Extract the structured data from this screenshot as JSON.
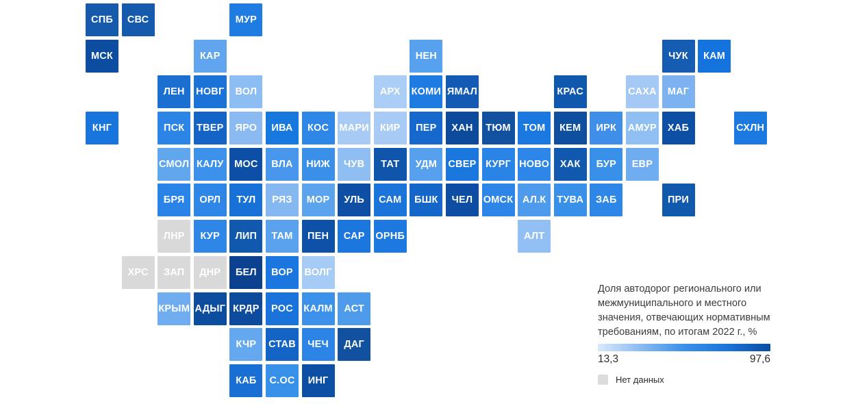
{
  "chart_data": {
    "type": "heatmap",
    "subtype": "tile-grid-cartogram",
    "title": "Доля автодорог регионального или\nмежмуниципального и местного\nзначения, отвечающих нормативным\nтребованиям, по итогам 2022 г., %",
    "no_data_label": "Нет данных",
    "colorbar": {
      "min": 13.3,
      "max": 97.6,
      "min_label": "13,3",
      "max_label": "97,6",
      "gradient": [
        "#d9e9fc",
        "#8abaf1",
        "#3a90e9",
        "#1b74da",
        "#0b4da1"
      ]
    },
    "no_data_color": "#d9d9d9",
    "no_data_swatch_color": "#dcdcdc",
    "tile_label_color": "#ffffff",
    "cells": [
      {
        "label": "СПБ",
        "col": 1,
        "row": 1,
        "color": "#165aae"
      },
      {
        "label": "СВС",
        "col": 2,
        "row": 1,
        "color": "#165aae"
      },
      {
        "label": "МУР",
        "col": 5,
        "row": 1,
        "color": "#1e7ce2"
      },
      {
        "label": "МСК",
        "col": 1,
        "row": 2,
        "color": "#0c4da2"
      },
      {
        "label": "КАР",
        "col": 4,
        "row": 2,
        "color": "#60a5ee"
      },
      {
        "label": "НЕН",
        "col": 10,
        "row": 2,
        "color": "#58a1ef"
      },
      {
        "label": "ЧУК",
        "col": 17,
        "row": 2,
        "color": "#155cb2"
      },
      {
        "label": "КАМ",
        "col": 18,
        "row": 2,
        "color": "#1473dc"
      },
      {
        "label": "ЛЕН",
        "col": 3,
        "row": 3,
        "color": "#1b6fd1"
      },
      {
        "label": "НОВГ",
        "col": 4,
        "row": 3,
        "color": "#1b73d8"
      },
      {
        "label": "ВОЛ",
        "col": 5,
        "row": 3,
        "color": "#8cbdf3"
      },
      {
        "label": "АРХ",
        "col": 9,
        "row": 3,
        "color": "#abcef6"
      },
      {
        "label": "КОМИ",
        "col": 10,
        "row": 3,
        "color": "#1e7be2"
      },
      {
        "label": "ЯМАЛ",
        "col": 11,
        "row": 3,
        "color": "#125ab4"
      },
      {
        "label": "КРАС",
        "col": 14,
        "row": 3,
        "color": "#1058ae"
      },
      {
        "label": "САХА",
        "col": 16,
        "row": 3,
        "color": "#a4c9f4"
      },
      {
        "label": "МАГ",
        "col": 17,
        "row": 3,
        "color": "#7db2f1"
      },
      {
        "label": "КНГ",
        "col": 1,
        "row": 4,
        "color": "#1775dd"
      },
      {
        "label": "ПСК",
        "col": 3,
        "row": 4,
        "color": "#2b84e6"
      },
      {
        "label": "ТВЕР",
        "col": 4,
        "row": 4,
        "color": "#1463c6"
      },
      {
        "label": "ЯРО",
        "col": 5,
        "row": 4,
        "color": "#8abaf1"
      },
      {
        "label": "ИВА",
        "col": 6,
        "row": 4,
        "color": "#1778de"
      },
      {
        "label": "КОС",
        "col": 7,
        "row": 4,
        "color": "#2e86e7"
      },
      {
        "label": "МАРИ",
        "col": 8,
        "row": 4,
        "color": "#a8cbf5"
      },
      {
        "label": "КИР",
        "col": 9,
        "row": 4,
        "color": "#a8cbf5"
      },
      {
        "label": "ПЕР",
        "col": 10,
        "row": 4,
        "color": "#1668cd"
      },
      {
        "label": "ХАН",
        "col": 11,
        "row": 4,
        "color": "#0c4a9b"
      },
      {
        "label": "ТЮМ",
        "col": 12,
        "row": 4,
        "color": "#11519f"
      },
      {
        "label": "ТОМ",
        "col": 13,
        "row": 4,
        "color": "#1a78e0"
      },
      {
        "label": "КЕМ",
        "col": 14,
        "row": 4,
        "color": "#0e4f9f"
      },
      {
        "label": "ИРК",
        "col": 15,
        "row": 4,
        "color": "#3f8fe9"
      },
      {
        "label": "АМУР",
        "col": 16,
        "row": 4,
        "color": "#90c0f3"
      },
      {
        "label": "ХАБ",
        "col": 17,
        "row": 4,
        "color": "#0d4fa4"
      },
      {
        "label": "СХЛН",
        "col": 19,
        "row": 4,
        "color": "#1b79e0"
      },
      {
        "label": "СМОЛ",
        "col": 3,
        "row": 5,
        "color": "#60a7ee"
      },
      {
        "label": "КАЛУ",
        "col": 4,
        "row": 5,
        "color": "#3c92ea"
      },
      {
        "label": "МОС",
        "col": 5,
        "row": 5,
        "color": "#0d4fa6"
      },
      {
        "label": "ВЛА",
        "col": 6,
        "row": 5,
        "color": "#4897ec"
      },
      {
        "label": "НИЖ",
        "col": 7,
        "row": 5,
        "color": "#3a90e9"
      },
      {
        "label": "ЧУВ",
        "col": 8,
        "row": 5,
        "color": "#8fbef3"
      },
      {
        "label": "ТАТ",
        "col": 9,
        "row": 5,
        "color": "#0f55ab"
      },
      {
        "label": "УДМ",
        "col": 10,
        "row": 5,
        "color": "#57a0ed"
      },
      {
        "label": "СВЕР",
        "col": 11,
        "row": 5,
        "color": "#1a77de"
      },
      {
        "label": "КУРГ",
        "col": 12,
        "row": 5,
        "color": "#2a84e6"
      },
      {
        "label": "НОВО",
        "col": 13,
        "row": 5,
        "color": "#2e87e8"
      },
      {
        "label": "ХАК",
        "col": 14,
        "row": 5,
        "color": "#1059ae"
      },
      {
        "label": "БУР",
        "col": 15,
        "row": 5,
        "color": "#3990e9"
      },
      {
        "label": "ЕВР",
        "col": 16,
        "row": 5,
        "color": "#70adf0"
      },
      {
        "label": "БРЯ",
        "col": 3,
        "row": 6,
        "color": "#2a83e6"
      },
      {
        "label": "ОРЛ",
        "col": 4,
        "row": 6,
        "color": "#2e86e7"
      },
      {
        "label": "ТУЛ",
        "col": 5,
        "row": 6,
        "color": "#1871d6"
      },
      {
        "label": "РЯЗ",
        "col": 6,
        "row": 6,
        "color": "#85b8f1"
      },
      {
        "label": "МОР",
        "col": 7,
        "row": 6,
        "color": "#5ba3ed"
      },
      {
        "label": "УЛЬ",
        "col": 8,
        "row": 6,
        "color": "#0e4fa5"
      },
      {
        "label": "САМ",
        "col": 9,
        "row": 6,
        "color": "#1a74da"
      },
      {
        "label": "БШК",
        "col": 10,
        "row": 6,
        "color": "#1466c8"
      },
      {
        "label": "ЧЕЛ",
        "col": 11,
        "row": 6,
        "color": "#0d4da3"
      },
      {
        "label": "ОМСК",
        "col": 12,
        "row": 6,
        "color": "#2d86e7"
      },
      {
        "label": "АЛ.К",
        "col": 13,
        "row": 6,
        "color": "#4e9aec"
      },
      {
        "label": "ТУВА",
        "col": 14,
        "row": 6,
        "color": "#3990e9"
      },
      {
        "label": "ЗАБ",
        "col": 15,
        "row": 6,
        "color": "#2e87e7"
      },
      {
        "label": "ПРИ",
        "col": 17,
        "row": 6,
        "color": "#1159ad"
      },
      {
        "label": "ЛНР",
        "col": 3,
        "row": 7,
        "color": "#d9d9d9"
      },
      {
        "label": "КУР",
        "col": 4,
        "row": 7,
        "color": "#2e86e7"
      },
      {
        "label": "ЛИП",
        "col": 5,
        "row": 7,
        "color": "#1059ae"
      },
      {
        "label": "ТАМ",
        "col": 6,
        "row": 7,
        "color": "#5aa2ed"
      },
      {
        "label": "ПЕН",
        "col": 7,
        "row": 7,
        "color": "#0e51a8"
      },
      {
        "label": "САР",
        "col": 8,
        "row": 7,
        "color": "#1b77de"
      },
      {
        "label": "ОРНБ",
        "col": 9,
        "row": 7,
        "color": "#1d79e0"
      },
      {
        "label": "АЛТ",
        "col": 13,
        "row": 7,
        "color": "#93c0f4"
      },
      {
        "label": "ХРС",
        "col": 2,
        "row": 8,
        "color": "#d9d9d9"
      },
      {
        "label": "ЗАП",
        "col": 3,
        "row": 8,
        "color": "#d9d9d9"
      },
      {
        "label": "ДНР",
        "col": 4,
        "row": 8,
        "color": "#d9d9d9"
      },
      {
        "label": "БЕЛ",
        "col": 5,
        "row": 8,
        "color": "#0c418f"
      },
      {
        "label": "ВОР",
        "col": 6,
        "row": 8,
        "color": "#1b76e0"
      },
      {
        "label": "ВОЛГ",
        "col": 7,
        "row": 8,
        "color": "#a6cbf5"
      },
      {
        "label": "КРЫМ",
        "col": 3,
        "row": 9,
        "color": "#6fadf0"
      },
      {
        "label": "АДЫГ",
        "col": 4,
        "row": 9,
        "color": "#0d4da0"
      },
      {
        "label": "КРДР",
        "col": 5,
        "row": 9,
        "color": "#0d4c9d"
      },
      {
        "label": "РОС",
        "col": 6,
        "row": 9,
        "color": "#1a73da"
      },
      {
        "label": "КАЛМ",
        "col": 7,
        "row": 9,
        "color": "#3c92ea"
      },
      {
        "label": "АСТ",
        "col": 8,
        "row": 9,
        "color": "#4e9bec"
      },
      {
        "label": "КЧР",
        "col": 5,
        "row": 10,
        "color": "#64a8ef"
      },
      {
        "label": "СТАВ",
        "col": 6,
        "row": 10,
        "color": "#1464c6"
      },
      {
        "label": "ЧЕЧ",
        "col": 7,
        "row": 10,
        "color": "#2b84e6"
      },
      {
        "label": "ДАГ",
        "col": 8,
        "row": 10,
        "color": "#11519f"
      },
      {
        "label": "КАБ",
        "col": 5,
        "row": 11,
        "color": "#1a6fd4"
      },
      {
        "label": "С.ОС",
        "col": 6,
        "row": 11,
        "color": "#3890e9"
      },
      {
        "label": "ИНГ",
        "col": 7,
        "row": 11,
        "color": "#0d4fa4"
      }
    ]
  }
}
